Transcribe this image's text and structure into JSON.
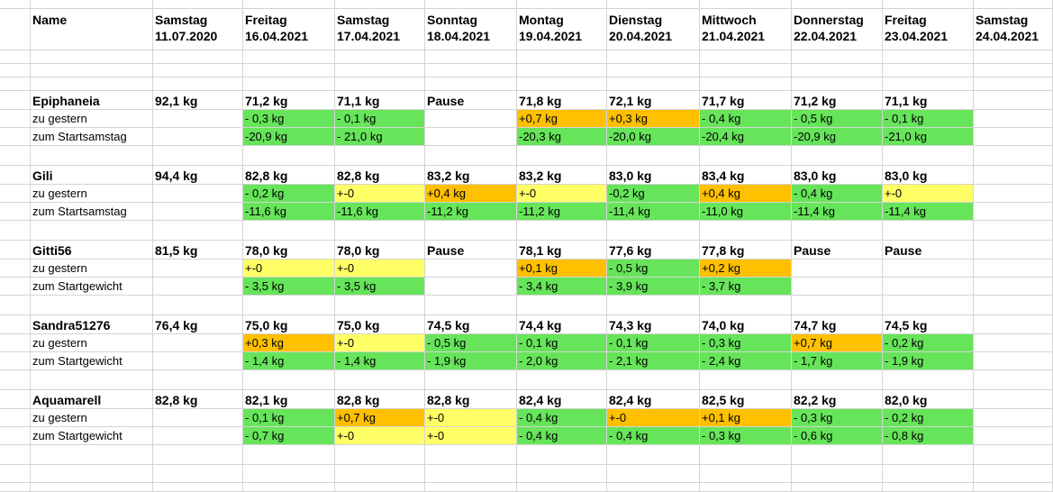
{
  "colors": {
    "green": "#66e45a",
    "yellow": "#ffff66",
    "orange": "#ffc000",
    "grid": "#d4d4d4"
  },
  "header": {
    "cells": [
      [
        "Name",
        ""
      ],
      [
        "Samstag",
        "11.07.2020"
      ],
      [
        "Freitag",
        "16.04.2021"
      ],
      [
        "Samstag",
        "17.04.2021"
      ],
      [
        "Sonntag",
        "18.04.2021"
      ],
      [
        "Montag",
        "19.04.2021"
      ],
      [
        "Dienstag",
        "20.04.2021"
      ],
      [
        "Mittwoch",
        "21.04.2021"
      ],
      [
        "Donnerstag",
        "22.04.2021"
      ],
      [
        "Freitag",
        "23.04.2021"
      ],
      [
        "Samstag",
        "24.04.2021"
      ]
    ]
  },
  "blocks": [
    {
      "name": "Epiphaneia",
      "weights": [
        "92,1 kg",
        "71,2 kg",
        "71,1 kg",
        "Pause",
        "71,8 kg",
        "72,1 kg",
        "71,7 kg",
        "71,2 kg",
        "71,1 kg",
        ""
      ],
      "rows": [
        {
          "label": "zu gestern",
          "values": [
            "",
            "- 0,3 kg",
            "- 0,1 kg",
            "",
            "+0,7 kg",
            "+0,3 kg",
            "- 0,4 kg",
            "- 0,5 kg",
            "- 0,1 kg",
            ""
          ],
          "colors": [
            "",
            "green",
            "green",
            "",
            "orange",
            "orange",
            "green",
            "green",
            "green",
            ""
          ]
        },
        {
          "label": "zum Startsamstag",
          "values": [
            "",
            "-20,9 kg",
            "- 21,0 kg",
            "",
            "-20,3 kg",
            "-20,0 kg",
            "-20,4 kg",
            "-20,9 kg",
            "-21,0 kg",
            ""
          ],
          "colors": [
            "",
            "green",
            "green",
            "",
            "green",
            "green",
            "green",
            "green",
            "green",
            ""
          ]
        }
      ]
    },
    {
      "name": "Gili",
      "weights": [
        "94,4 kg",
        "82,8 kg",
        "82,8 kg",
        "83,2 kg",
        "83,2 kg",
        "83,0 kg",
        "83,4 kg",
        "83,0 kg",
        "83,0 kg",
        ""
      ],
      "rows": [
        {
          "label": "zu gestern",
          "values": [
            "",
            "- 0,2 kg",
            "+-0",
            "+0,4 kg",
            "+-0",
            "-0,2 kg",
            "+0,4 kg",
            "- 0,4 kg",
            "+-0",
            ""
          ],
          "colors": [
            "",
            "green",
            "yellow",
            "orange",
            "yellow",
            "green",
            "orange",
            "green",
            "yellow",
            ""
          ]
        },
        {
          "label": "zum Startsamstag",
          "values": [
            "",
            "-11,6 kg",
            "-11,6 kg",
            "-11,2 kg",
            "-11,2 kg",
            "-11,4 kg",
            "-11,0 kg",
            "-11,4 kg",
            "-11,4 kg",
            ""
          ],
          "colors": [
            "",
            "green",
            "green",
            "green",
            "green",
            "green",
            "green",
            "green",
            "green",
            ""
          ]
        }
      ]
    },
    {
      "name": "Gitti56",
      "weights": [
        "81,5 kg",
        "78,0 kg",
        "78,0 kg",
        "Pause",
        "78,1 kg",
        "77,6 kg",
        "77,8 kg",
        "Pause",
        "Pause",
        ""
      ],
      "rows": [
        {
          "label": "zu gestern",
          "values": [
            "",
            "+-0",
            "+-0",
            "",
            "+0,1 kg",
            "- 0,5 kg",
            "+0,2 kg",
            "",
            "",
            ""
          ],
          "colors": [
            "",
            "yellow",
            "yellow",
            "",
            "orange",
            "green",
            "orange",
            "",
            "",
            ""
          ]
        },
        {
          "label": "zum Startgewicht",
          "values": [
            "",
            "- 3,5 kg",
            "- 3,5 kg",
            "",
            "- 3,4 kg",
            "- 3,9 kg",
            "- 3,7 kg",
            "",
            "",
            ""
          ],
          "colors": [
            "",
            "green",
            "green",
            "",
            "green",
            "green",
            "green",
            "",
            "",
            ""
          ]
        }
      ]
    },
    {
      "name": "Sandra51276",
      "weights": [
        "76,4 kg",
        "75,0 kg",
        "75,0 kg",
        "74,5 kg",
        "74,4 kg",
        "74,3 kg",
        "74,0 kg",
        "74,7 kg",
        "74,5 kg",
        ""
      ],
      "rows": [
        {
          "label": "zu gestern",
          "values": [
            "",
            "+0,3 kg",
            "+-0",
            "- 0,5 kg",
            "- 0,1 kg",
            "- 0,1 kg",
            "- 0,3 kg",
            "+0,7 kg",
            "- 0,2 kg",
            ""
          ],
          "colors": [
            "",
            "orange",
            "yellow",
            "green",
            "green",
            "green",
            "green",
            "orange",
            "green",
            ""
          ]
        },
        {
          "label": "zum Startgewicht",
          "values": [
            "",
            "- 1,4 kg",
            "- 1,4 kg",
            "- 1,9 kg",
            "- 2,0 kg",
            "- 2,1 kg",
            "- 2,4 kg",
            "- 1,7 kg",
            "- 1,9 kg",
            ""
          ],
          "colors": [
            "",
            "green",
            "green",
            "green",
            "green",
            "green",
            "green",
            "green",
            "green",
            ""
          ]
        }
      ]
    },
    {
      "name": "Aquamarell",
      "weights": [
        "82,8 kg",
        "82,1 kg",
        "82,8 kg",
        "82,8 kg",
        "82,4 kg",
        "82,4 kg",
        "82,5 kg",
        "82,2 kg",
        "82,0 kg",
        ""
      ],
      "rows": [
        {
          "label": "zu gestern",
          "values": [
            "",
            "- 0,1 kg",
            "+0,7 kg",
            "+-0",
            "- 0,4 kg",
            "+-0",
            "+0,1 kg",
            "- 0,3 kg",
            "- 0,2 kg",
            ""
          ],
          "colors": [
            "",
            "green",
            "orange",
            "yellow",
            "green",
            "orange",
            "orange",
            "green",
            "green",
            ""
          ]
        },
        {
          "label": "zum Startgewicht",
          "values": [
            "",
            "- 0,7 kg",
            "+-0",
            "+-0",
            "- 0,4 kg",
            "- 0,4 kg",
            "- 0,3 kg",
            "- 0,6 kg",
            "- 0,8 kg",
            ""
          ],
          "colors": [
            "",
            "green",
            "yellow",
            "yellow",
            "green",
            "green",
            "green",
            "green",
            "green",
            ""
          ]
        }
      ]
    }
  ]
}
